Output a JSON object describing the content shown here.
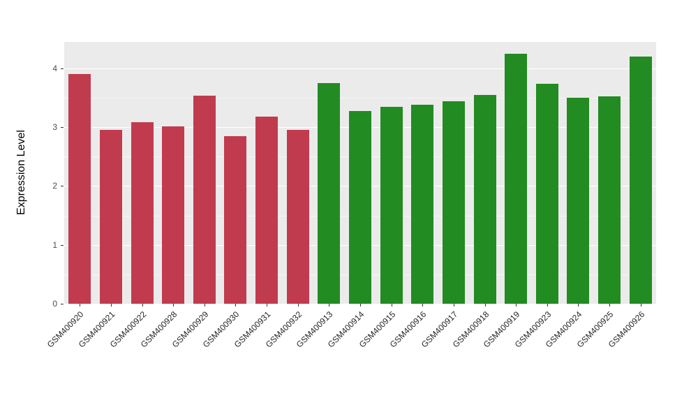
{
  "chart_data": {
    "type": "bar",
    "title": "",
    "xlabel": "",
    "ylabel": "Expression Level",
    "ylim": [
      0,
      4.45
    ],
    "yticks": [
      0,
      1,
      2,
      3,
      4
    ],
    "ytick_labels": [
      "0",
      "1",
      "2",
      "3",
      "4"
    ],
    "minor_yticks": [
      0.5,
      1.5,
      2.5,
      3.5
    ],
    "grid": "on",
    "legend": "none",
    "panel_background": "#EBEBEB",
    "categories": [
      "GSM400920",
      "GSM400921",
      "GSM400922",
      "GSM400928",
      "GSM400929",
      "GSM400930",
      "GSM400931",
      "GSM400932",
      "GSM400913",
      "GSM400914",
      "GSM400915",
      "GSM400916",
      "GSM400917",
      "GSM400918",
      "GSM400919",
      "GSM400923",
      "GSM400924",
      "GSM400925",
      "GSM400926"
    ],
    "values": [
      3.9,
      2.95,
      3.08,
      3.02,
      3.54,
      2.85,
      3.18,
      2.96,
      3.75,
      3.27,
      3.35,
      3.38,
      3.44,
      3.55,
      4.25,
      3.74,
      3.5,
      3.53,
      4.2
    ],
    "bar_colors": [
      "#C13B4F",
      "#C13B4F",
      "#C13B4F",
      "#C13B4F",
      "#C13B4F",
      "#C13B4F",
      "#C13B4F",
      "#C13B4F",
      "#228B22",
      "#228B22",
      "#228B22",
      "#228B22",
      "#228B22",
      "#228B22",
      "#228B22",
      "#228B22",
      "#228B22",
      "#228B22",
      "#228B22"
    ],
    "groups": [
      {
        "name": "red-group",
        "color": "#C13B4F",
        "count": 8
      },
      {
        "name": "green-group",
        "color": "#228B22",
        "count": 11
      }
    ]
  }
}
